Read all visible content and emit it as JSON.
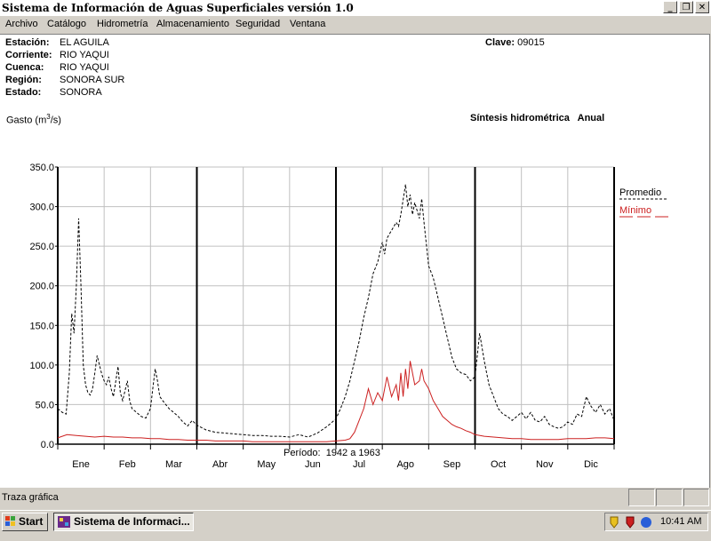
{
  "window": {
    "title": "Sistema de Información de Aguas Superficiales  versión 1.0",
    "controls": [
      "_",
      "❐",
      "✕"
    ]
  },
  "menu": [
    "Archivo",
    "Catálogo",
    "Hidrometría",
    "Almacenamiento",
    "Seguridad",
    "Ventana"
  ],
  "station": {
    "estacion_label": "Estación:",
    "estacion": "EL AGUILA",
    "corriente_label": "Corriente:",
    "corriente": "RIO YAQUI",
    "cuenca_label": "Cuenca:",
    "cuenca": "RIO YAQUI",
    "region_label": "Región:",
    "region": "SONORA SUR",
    "estado_label": "Estado:",
    "estado": "SONORA",
    "clave_label": "Clave:",
    "clave": "09015"
  },
  "chart_header": {
    "ylabel_pre": "Gasto (m",
    "ylabel_sup": "3",
    "ylabel_post": "/s)",
    "synthesis": "Síntesis hidrométrica   Anual",
    "periodo": "Período:  1942 a 1963"
  },
  "chart_data": {
    "type": "line",
    "ylim": [
      0,
      350
    ],
    "yticks": [
      "350.0",
      "300.0",
      "250.0",
      "200.0",
      "150.0",
      "100.0",
      "50.0",
      "0.0"
    ],
    "months": [
      "Ene",
      "Feb",
      "Mar",
      "Abr",
      "May",
      "Jun",
      "Jul",
      "Ago",
      "Sep",
      "Oct",
      "Nov",
      "Dic"
    ],
    "grid": true,
    "legend_position": "right",
    "series": [
      {
        "name": "Promedio",
        "color": "#000000",
        "dash": true,
        "points": [
          [
            0,
            45
          ],
          [
            0.1,
            40
          ],
          [
            0.18,
            38
          ],
          [
            0.25,
            90
          ],
          [
            0.3,
            165
          ],
          [
            0.35,
            140
          ],
          [
            0.4,
            200
          ],
          [
            0.45,
            285
          ],
          [
            0.5,
            200
          ],
          [
            0.55,
            100
          ],
          [
            0.6,
            75
          ],
          [
            0.65,
            65
          ],
          [
            0.7,
            62
          ],
          [
            0.75,
            70
          ],
          [
            0.8,
            90
          ],
          [
            0.85,
            112
          ],
          [
            0.9,
            100
          ],
          [
            0.95,
            88
          ],
          [
            1.0,
            80
          ],
          [
            1.05,
            75
          ],
          [
            1.1,
            85
          ],
          [
            1.15,
            70
          ],
          [
            1.2,
            60
          ],
          [
            1.3,
            98
          ],
          [
            1.35,
            65
          ],
          [
            1.4,
            55
          ],
          [
            1.5,
            80
          ],
          [
            1.55,
            55
          ],
          [
            1.6,
            45
          ],
          [
            1.7,
            40
          ],
          [
            1.8,
            35
          ],
          [
            1.9,
            33
          ],
          [
            2.0,
            45
          ],
          [
            2.05,
            70
          ],
          [
            2.1,
            95
          ],
          [
            2.15,
            80
          ],
          [
            2.2,
            60
          ],
          [
            2.3,
            52
          ],
          [
            2.4,
            45
          ],
          [
            2.5,
            40
          ],
          [
            2.6,
            35
          ],
          [
            2.7,
            28
          ],
          [
            2.8,
            23
          ],
          [
            2.9,
            30
          ],
          [
            3.0,
            24
          ],
          [
            3.2,
            18
          ],
          [
            3.4,
            15
          ],
          [
            3.6,
            14
          ],
          [
            3.8,
            13
          ],
          [
            4.0,
            12
          ],
          [
            4.2,
            11
          ],
          [
            4.4,
            11
          ],
          [
            4.6,
            10
          ],
          [
            4.8,
            10
          ],
          [
            5.0,
            9
          ],
          [
            5.2,
            12
          ],
          [
            5.4,
            9
          ],
          [
            5.6,
            14
          ],
          [
            5.8,
            22
          ],
          [
            6.0,
            32
          ],
          [
            6.1,
            45
          ],
          [
            6.2,
            60
          ],
          [
            6.3,
            80
          ],
          [
            6.4,
            105
          ],
          [
            6.5,
            130
          ],
          [
            6.6,
            160
          ],
          [
            6.7,
            185
          ],
          [
            6.8,
            215
          ],
          [
            6.9,
            230
          ],
          [
            7.0,
            255
          ],
          [
            7.05,
            240
          ],
          [
            7.1,
            260
          ],
          [
            7.2,
            270
          ],
          [
            7.3,
            280
          ],
          [
            7.35,
            275
          ],
          [
            7.4,
            290
          ],
          [
            7.5,
            328
          ],
          [
            7.55,
            300
          ],
          [
            7.6,
            315
          ],
          [
            7.65,
            290
          ],
          [
            7.7,
            305
          ],
          [
            7.8,
            285
          ],
          [
            7.85,
            310
          ],
          [
            7.9,
            280
          ],
          [
            8.0,
            225
          ],
          [
            8.1,
            210
          ],
          [
            8.2,
            185
          ],
          [
            8.3,
            160
          ],
          [
            8.4,
            135
          ],
          [
            8.5,
            110
          ],
          [
            8.6,
            95
          ],
          [
            8.7,
            90
          ],
          [
            8.8,
            88
          ],
          [
            8.9,
            80
          ],
          [
            9.0,
            85
          ],
          [
            9.1,
            140
          ],
          [
            9.2,
            105
          ],
          [
            9.3,
            75
          ],
          [
            9.4,
            60
          ],
          [
            9.5,
            45
          ],
          [
            9.6,
            38
          ],
          [
            9.7,
            35
          ],
          [
            9.8,
            30
          ],
          [
            9.9,
            35
          ],
          [
            10.0,
            40
          ],
          [
            10.1,
            32
          ],
          [
            10.2,
            40
          ],
          [
            10.3,
            30
          ],
          [
            10.4,
            28
          ],
          [
            10.5,
            35
          ],
          [
            10.6,
            25
          ],
          [
            10.7,
            22
          ],
          [
            10.8,
            20
          ],
          [
            10.9,
            22
          ],
          [
            11.0,
            28
          ],
          [
            11.1,
            25
          ],
          [
            11.2,
            38
          ],
          [
            11.3,
            35
          ],
          [
            11.4,
            60
          ],
          [
            11.5,
            48
          ],
          [
            11.6,
            40
          ],
          [
            11.7,
            50
          ],
          [
            11.8,
            38
          ],
          [
            11.9,
            45
          ],
          [
            12.0,
            30
          ]
        ]
      },
      {
        "name": "Mínimo",
        "color": "#cc2020",
        "dash": false,
        "points": [
          [
            0,
            8
          ],
          [
            0.2,
            12
          ],
          [
            0.4,
            11
          ],
          [
            0.6,
            10
          ],
          [
            0.8,
            9
          ],
          [
            1.0,
            10
          ],
          [
            1.2,
            9
          ],
          [
            1.4,
            9
          ],
          [
            1.6,
            8
          ],
          [
            1.8,
            8
          ],
          [
            2.0,
            7
          ],
          [
            2.2,
            7
          ],
          [
            2.4,
            6
          ],
          [
            2.6,
            6
          ],
          [
            2.8,
            5
          ],
          [
            3.0,
            5
          ],
          [
            3.2,
            5
          ],
          [
            3.4,
            4
          ],
          [
            3.6,
            4
          ],
          [
            3.8,
            4
          ],
          [
            4.0,
            4
          ],
          [
            4.2,
            3
          ],
          [
            4.4,
            3
          ],
          [
            4.6,
            3
          ],
          [
            4.8,
            3
          ],
          [
            5.0,
            3
          ],
          [
            5.2,
            3
          ],
          [
            5.4,
            3
          ],
          [
            5.6,
            3
          ],
          [
            5.8,
            3
          ],
          [
            6.0,
            4
          ],
          [
            6.2,
            5
          ],
          [
            6.3,
            7
          ],
          [
            6.4,
            15
          ],
          [
            6.5,
            30
          ],
          [
            6.6,
            45
          ],
          [
            6.7,
            70
          ],
          [
            6.8,
            50
          ],
          [
            6.9,
            65
          ],
          [
            7.0,
            55
          ],
          [
            7.1,
            85
          ],
          [
            7.2,
            60
          ],
          [
            7.3,
            75
          ],
          [
            7.35,
            55
          ],
          [
            7.4,
            90
          ],
          [
            7.45,
            60
          ],
          [
            7.5,
            95
          ],
          [
            7.55,
            70
          ],
          [
            7.6,
            105
          ],
          [
            7.7,
            75
          ],
          [
            7.8,
            80
          ],
          [
            7.85,
            95
          ],
          [
            7.9,
            80
          ],
          [
            8.0,
            70
          ],
          [
            8.1,
            55
          ],
          [
            8.2,
            45
          ],
          [
            8.3,
            35
          ],
          [
            8.4,
            30
          ],
          [
            8.5,
            25
          ],
          [
            8.6,
            22
          ],
          [
            8.7,
            20
          ],
          [
            8.8,
            17
          ],
          [
            8.9,
            15
          ],
          [
            9.0,
            12
          ],
          [
            9.2,
            10
          ],
          [
            9.4,
            9
          ],
          [
            9.6,
            8
          ],
          [
            9.8,
            7
          ],
          [
            10.0,
            7
          ],
          [
            10.2,
            6
          ],
          [
            10.4,
            6
          ],
          [
            10.6,
            6
          ],
          [
            10.8,
            6
          ],
          [
            11.0,
            7
          ],
          [
            11.2,
            7
          ],
          [
            11.4,
            7
          ],
          [
            11.6,
            8
          ],
          [
            11.8,
            8
          ],
          [
            12.0,
            7
          ]
        ]
      }
    ]
  },
  "statusbar": {
    "text": "Traza gráfica"
  },
  "taskbar": {
    "start": "Start",
    "task": "Sistema de Informaci...",
    "clock": "10:41 AM"
  }
}
